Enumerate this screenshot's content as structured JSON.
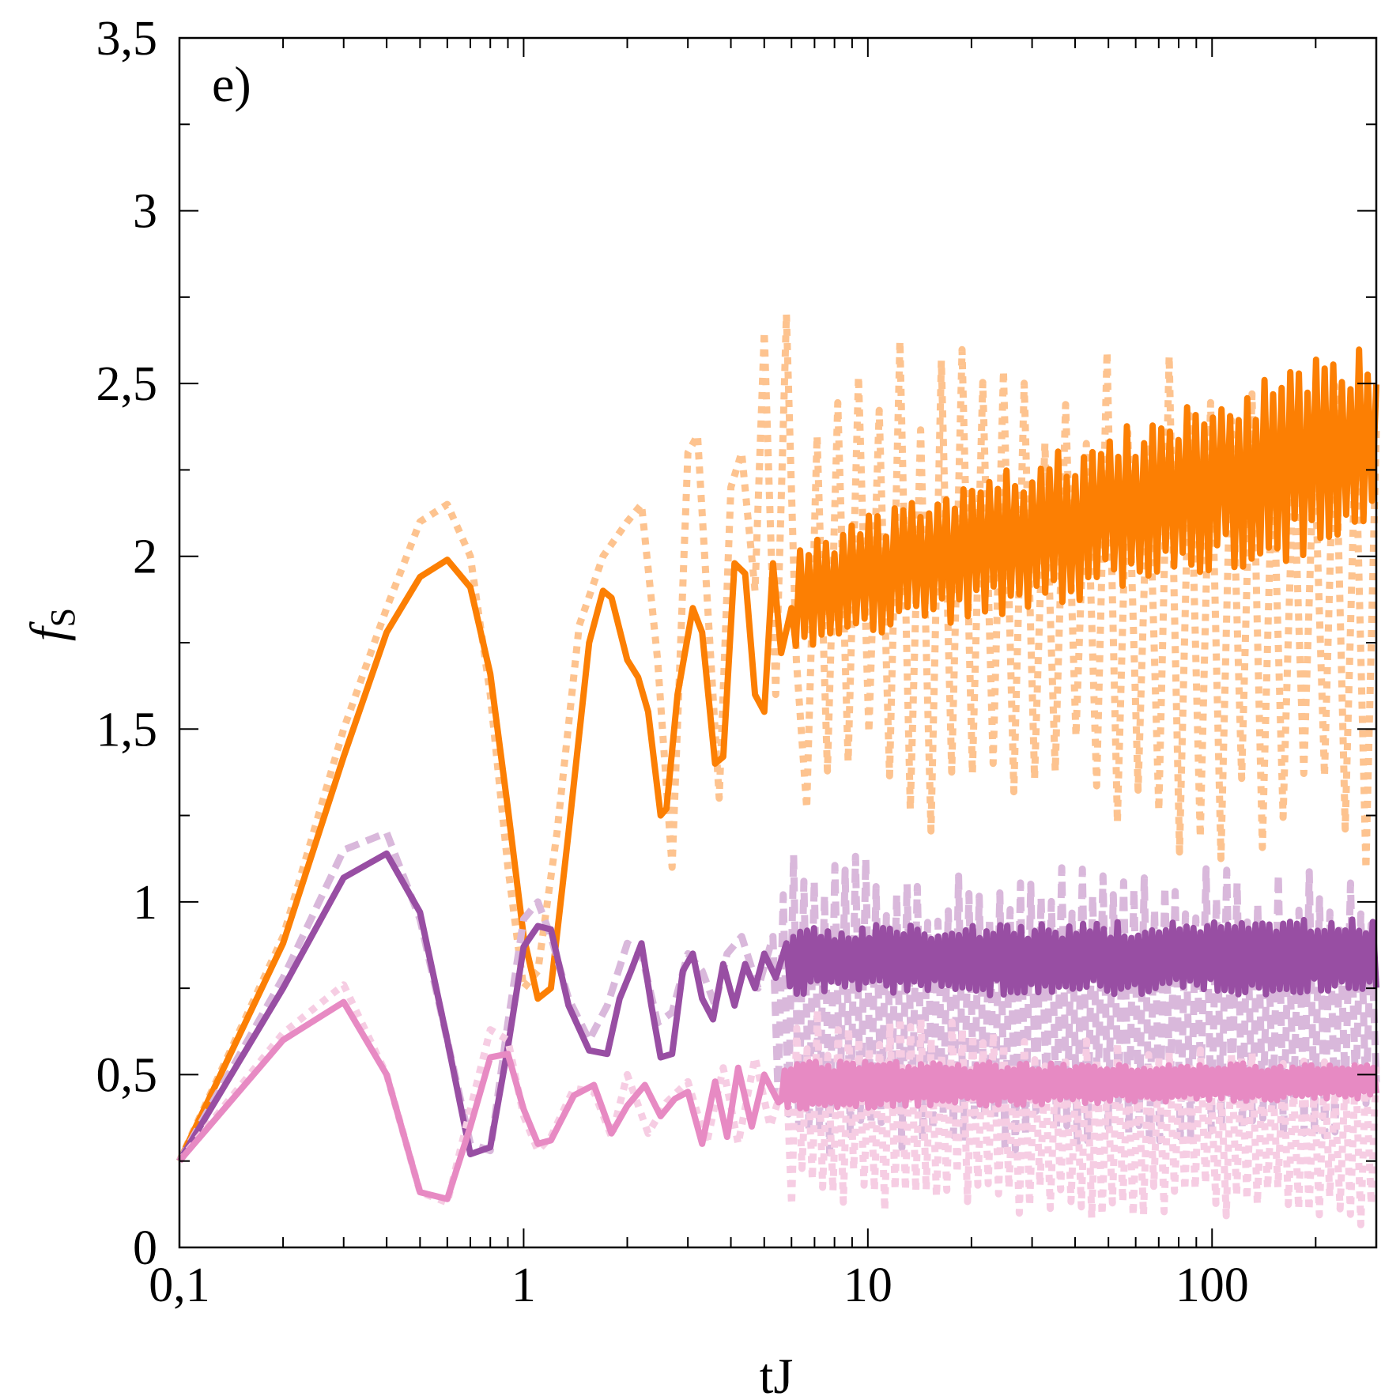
{
  "chart_data": {
    "type": "line",
    "panel_label": "e)",
    "xlabel": "tJ",
    "ylabel_main": "f",
    "ylabel_sub": "S",
    "x_scale": "log",
    "xlim": [
      0.1,
      300
    ],
    "ylim": [
      0,
      3.5
    ],
    "x_ticks": [
      {
        "value": 0.1,
        "label": "0,1"
      },
      {
        "value": 1,
        "label": "1"
      },
      {
        "value": 10,
        "label": "10"
      },
      {
        "value": 100,
        "label": "100"
      }
    ],
    "y_ticks": [
      {
        "value": 0,
        "label": "0"
      },
      {
        "value": 0.5,
        "label": "0,5"
      },
      {
        "value": 1,
        "label": "1"
      },
      {
        "value": 1.5,
        "label": "1,5"
      },
      {
        "value": 2,
        "label": "2"
      },
      {
        "value": 2.5,
        "label": "2,5"
      },
      {
        "value": 3,
        "label": "3"
      },
      {
        "value": 3.5,
        "label": "3,5"
      }
    ],
    "grid": false,
    "series": [
      {
        "style": "dotted",
        "color": "#fdc38f",
        "x": [
          0.1,
          0.2,
          0.3,
          0.4,
          0.5,
          0.6,
          0.7,
          0.8,
          0.9,
          1.0,
          1.1,
          1.25,
          1.45,
          1.7,
          2.0,
          2.2,
          2.45,
          2.7,
          3.0,
          3.2,
          3.45,
          3.7,
          4.0,
          4.3,
          4.7,
          5.0,
          5.4,
          5.8,
          6.2
        ],
        "y": [
          0.25,
          0.9,
          1.5,
          1.85,
          2.1,
          2.15,
          2.0,
          1.6,
          1.1,
          0.75,
          0.8,
          1.2,
          1.8,
          2.0,
          2.1,
          2.15,
          1.7,
          1.1,
          2.3,
          2.35,
          1.8,
          1.3,
          2.2,
          2.3,
          1.9,
          2.65,
          1.6,
          2.7,
          1.7
        ],
        "noise": {
          "from": 6.2,
          "to": 300,
          "start_center": 1.95,
          "end_center": 1.8,
          "start_amp": 0.7,
          "end_amp": 0.75,
          "period": 0.06
        }
      },
      {
        "style": "solid",
        "color": "#fc7f03",
        "x": [
          0.1,
          0.2,
          0.3,
          0.4,
          0.5,
          0.6,
          0.7,
          0.8,
          0.9,
          1.0,
          1.1,
          1.2,
          1.35,
          1.55,
          1.7,
          1.8,
          2.0,
          2.15,
          2.3,
          2.5,
          2.6,
          2.8,
          3.1,
          3.3,
          3.6,
          3.8,
          4.1,
          4.4,
          4.7,
          5.0,
          5.3,
          5.6,
          6.0
        ],
        "y": [
          0.25,
          0.88,
          1.42,
          1.78,
          1.94,
          1.99,
          1.91,
          1.66,
          1.27,
          0.9,
          0.72,
          0.75,
          1.2,
          1.75,
          1.9,
          1.88,
          1.7,
          1.65,
          1.55,
          1.25,
          1.27,
          1.6,
          1.85,
          1.78,
          1.4,
          1.42,
          1.98,
          1.95,
          1.6,
          1.55,
          1.98,
          1.72,
          1.85
        ],
        "noise": {
          "from": 6.0,
          "to": 300,
          "start_center": 1.88,
          "end_center": 2.33,
          "start_amp": 0.16,
          "end_amp": 0.3,
          "period": 0.025
        }
      },
      {
        "style": "dashed",
        "color": "#d9b8db",
        "x": [
          0.1,
          0.2,
          0.3,
          0.4,
          0.5,
          0.6,
          0.7,
          0.8,
          0.9,
          1.0,
          1.1,
          1.2,
          1.35,
          1.55,
          1.75,
          2.0,
          2.2,
          2.45,
          2.7,
          3.0,
          3.3,
          3.6,
          3.9,
          4.3,
          4.8,
          5.3
        ],
        "y": [
          0.25,
          0.78,
          1.15,
          1.2,
          0.95,
          0.6,
          0.3,
          0.28,
          0.65,
          0.95,
          1.0,
          0.9,
          0.72,
          0.6,
          0.7,
          0.88,
          0.85,
          0.65,
          0.68,
          0.85,
          0.8,
          0.7,
          0.85,
          0.9,
          0.75,
          0.9
        ],
        "noise": {
          "from": 5.3,
          "to": 300,
          "start_center": 0.7,
          "end_center": 0.7,
          "start_amp": 0.45,
          "end_amp": 0.38,
          "period": 0.03
        }
      },
      {
        "style": "solid",
        "color": "#984ea3",
        "x": [
          0.1,
          0.2,
          0.3,
          0.4,
          0.5,
          0.6,
          0.7,
          0.8,
          0.9,
          1.0,
          1.1,
          1.2,
          1.35,
          1.55,
          1.75,
          1.9,
          2.05,
          2.2,
          2.35,
          2.5,
          2.7,
          2.9,
          3.1,
          3.3,
          3.55,
          3.8,
          4.1,
          4.4,
          4.7,
          5.0,
          5.4,
          5.8
        ],
        "y": [
          0.25,
          0.75,
          1.07,
          1.14,
          0.97,
          0.6,
          0.27,
          0.29,
          0.58,
          0.87,
          0.93,
          0.92,
          0.7,
          0.57,
          0.56,
          0.72,
          0.8,
          0.88,
          0.7,
          0.55,
          0.56,
          0.8,
          0.85,
          0.72,
          0.66,
          0.82,
          0.7,
          0.82,
          0.75,
          0.85,
          0.78,
          0.88
        ],
        "noise": {
          "from": 5.8,
          "to": 300,
          "start_center": 0.83,
          "end_center": 0.84,
          "start_amp": 0.1,
          "end_amp": 0.11,
          "period": 0.02
        }
      },
      {
        "style": "dotted",
        "color": "#f6cde3",
        "x": [
          0.1,
          0.2,
          0.3,
          0.4,
          0.5,
          0.6,
          0.7,
          0.8,
          0.9,
          1.0,
          1.1,
          1.2,
          1.4,
          1.6,
          1.8,
          2.0,
          2.3,
          2.6,
          3.0,
          3.4,
          3.8,
          4.2,
          4.7,
          5.2,
          5.8
        ],
        "y": [
          0.25,
          0.62,
          0.76,
          0.5,
          0.16,
          0.13,
          0.4,
          0.63,
          0.6,
          0.38,
          0.28,
          0.32,
          0.46,
          0.45,
          0.32,
          0.5,
          0.33,
          0.42,
          0.48,
          0.3,
          0.52,
          0.3,
          0.55,
          0.35,
          0.5
        ],
        "noise": {
          "from": 5.8,
          "to": 300,
          "start_center": 0.4,
          "end_center": 0.3,
          "start_amp": 0.3,
          "end_amp": 0.24,
          "period": 0.03
        }
      },
      {
        "style": "solid",
        "color": "#e78ac3",
        "x": [
          0.1,
          0.2,
          0.3,
          0.4,
          0.5,
          0.6,
          0.7,
          0.8,
          0.9,
          1.0,
          1.1,
          1.2,
          1.4,
          1.6,
          1.8,
          2.0,
          2.25,
          2.5,
          2.75,
          3.0,
          3.3,
          3.6,
          3.9,
          4.2,
          4.6,
          5.0,
          5.5
        ],
        "y": [
          0.25,
          0.6,
          0.71,
          0.5,
          0.16,
          0.14,
          0.35,
          0.55,
          0.56,
          0.4,
          0.3,
          0.31,
          0.44,
          0.47,
          0.33,
          0.41,
          0.47,
          0.38,
          0.43,
          0.45,
          0.3,
          0.48,
          0.32,
          0.52,
          0.35,
          0.5,
          0.42
        ],
        "noise": {
          "from": 5.5,
          "to": 300,
          "start_center": 0.47,
          "end_center": 0.48,
          "start_amp": 0.07,
          "end_amp": 0.05,
          "period": 0.018
        }
      }
    ]
  }
}
